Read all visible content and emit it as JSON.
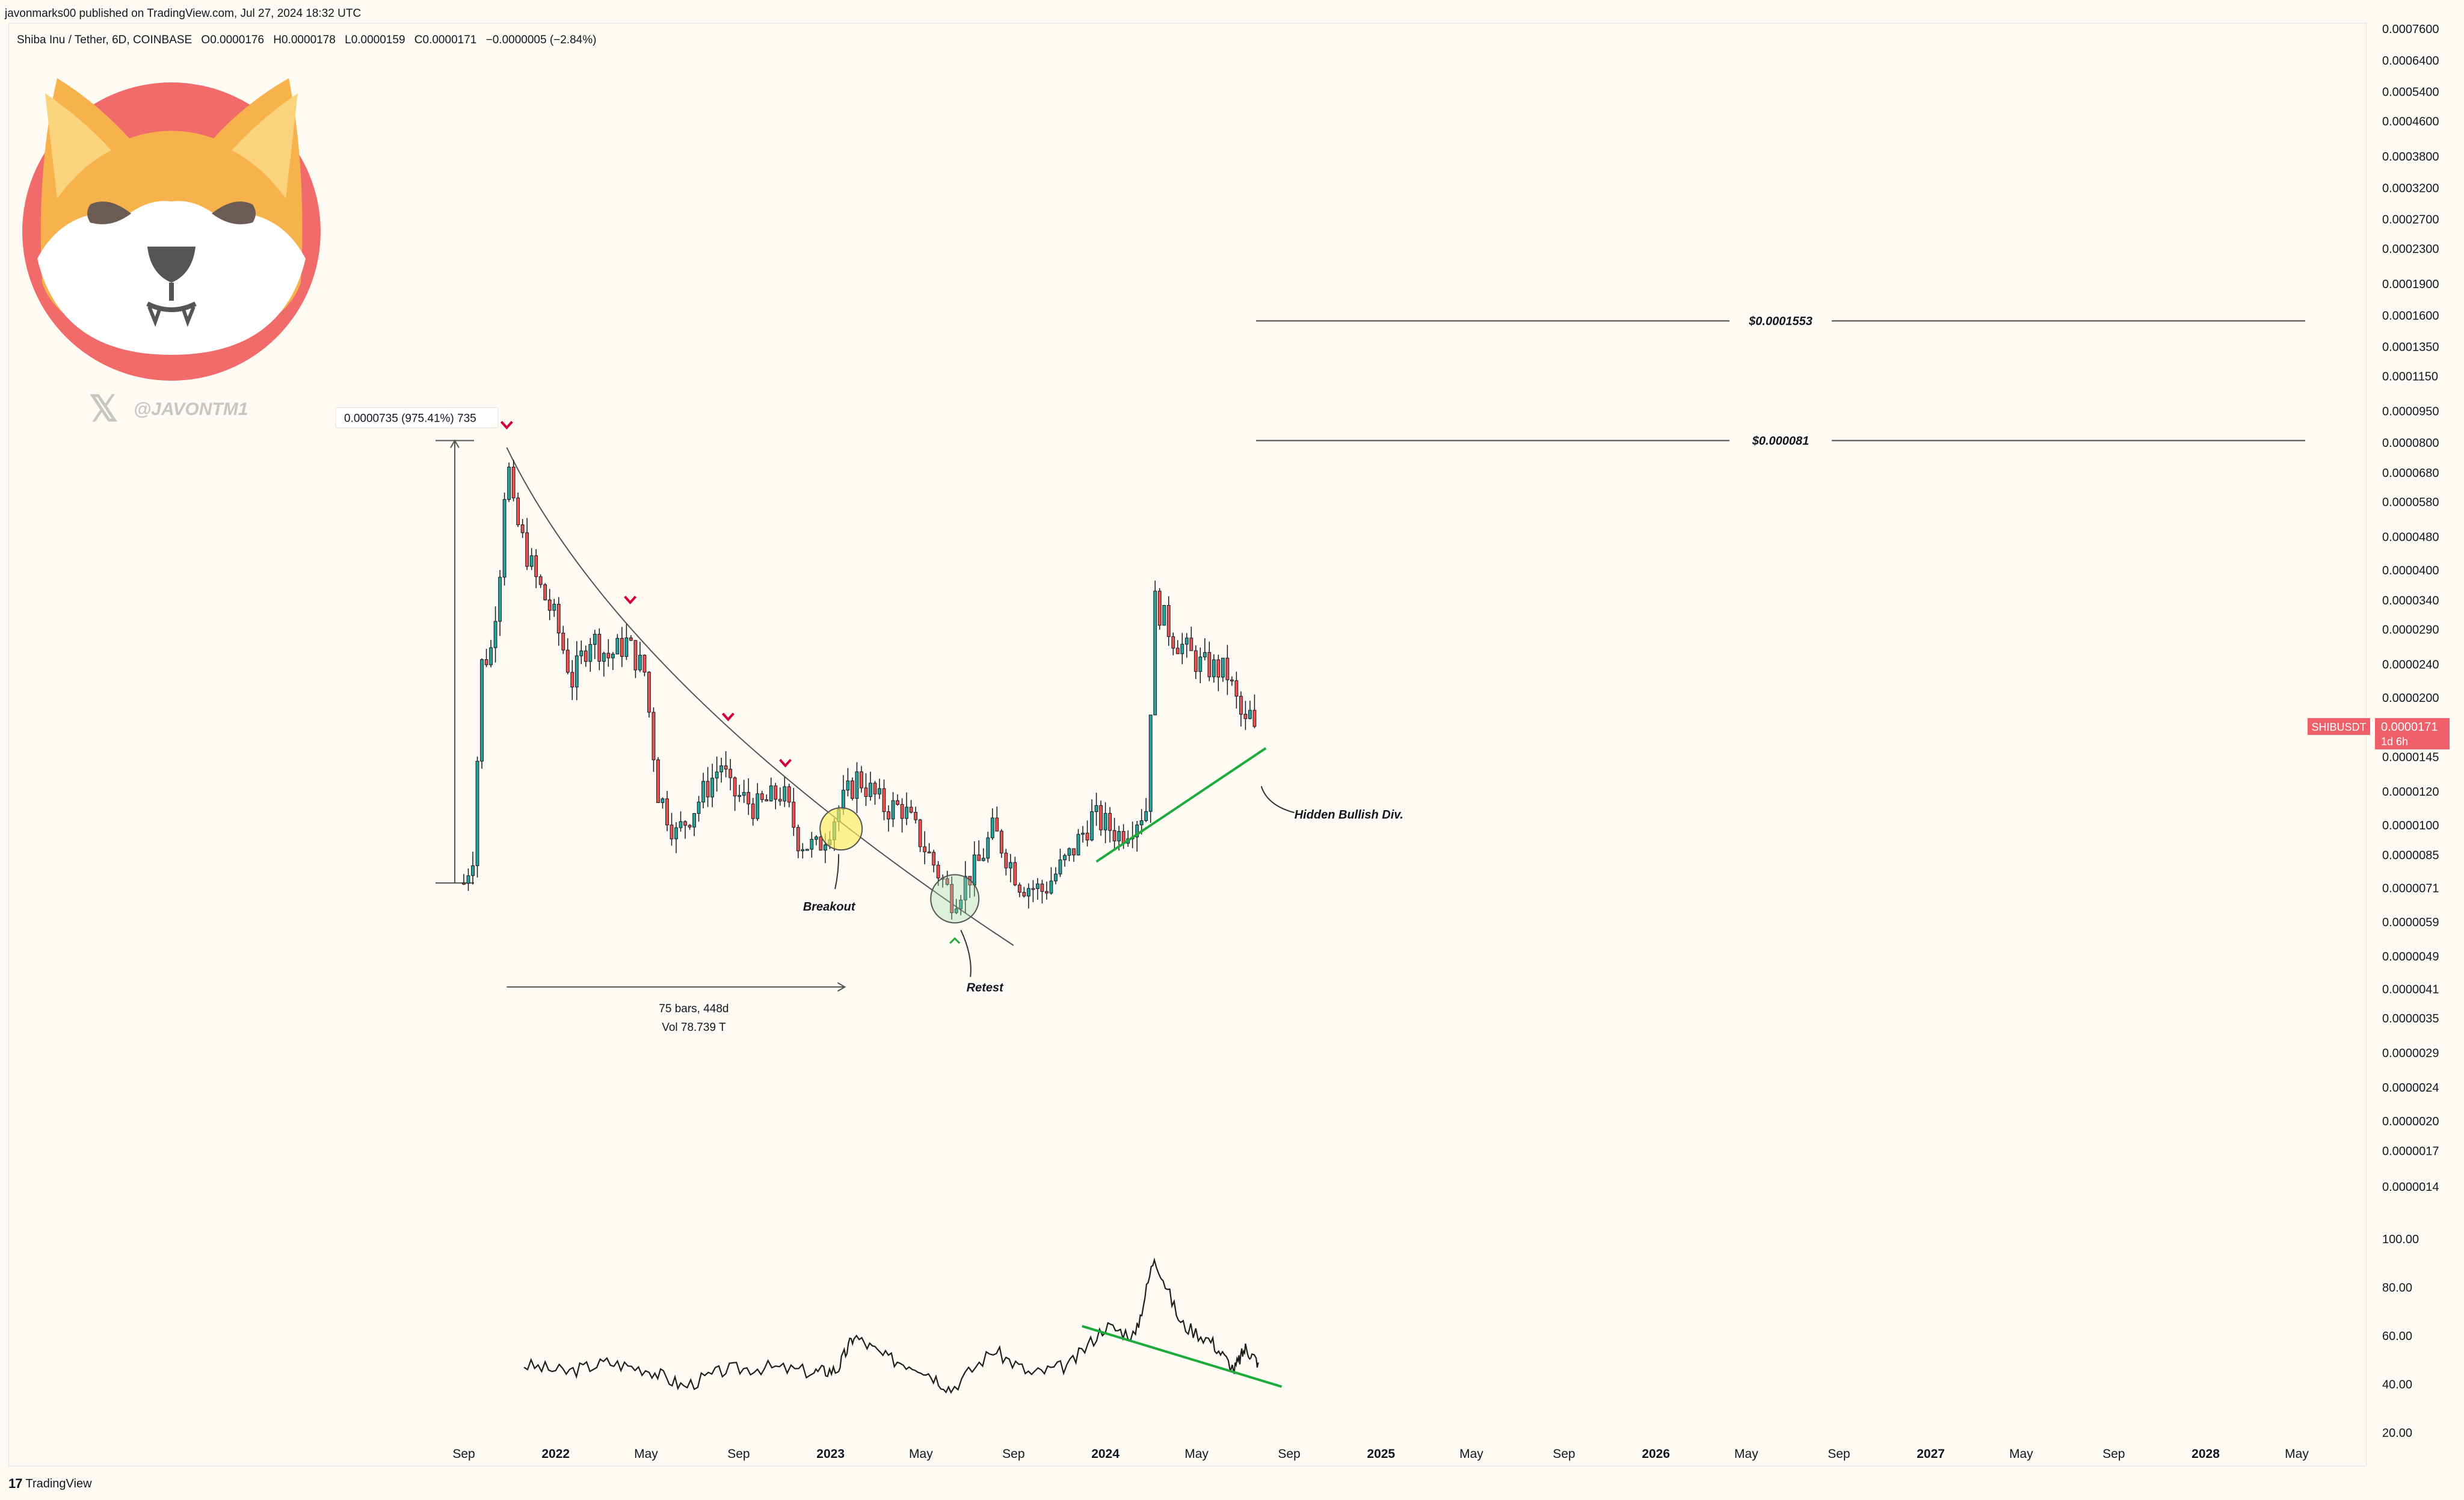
{
  "header": {
    "published_line": "javonmarks00 published on TradingView.com, Jul 27, 2024 18:32 UTC",
    "symbol": "Shiba Inu / Tether, 6D, COINBASE",
    "open": "O0.0000176",
    "high": "H0.0000178",
    "low": "L0.0000159",
    "close": "C0.0000171",
    "change": "−0.0000005 (−2.84%)"
  },
  "watermark": {
    "handle": "@JAVONTM1",
    "logo_icon": "shiba-inu-logo",
    "x_icon": "x-logo-icon"
  },
  "footer": {
    "brand": "TradingView",
    "logo_icon": "tradingview-logo-icon"
  },
  "colors": {
    "up": "#26a69a",
    "down": "#ef5350",
    "trend": "#1faa3c",
    "marker": "#d4003a",
    "price_tag": "#f0606a",
    "logo_ring": "#f26b6b",
    "logo_fur": "#f7b24c"
  },
  "chart_data": [
    {
      "type": "candlestick",
      "symbol": "SHIBUSDT",
      "interval": "6D",
      "scale": "log",
      "x_ticks": [
        "Sep",
        "2022",
        "May",
        "Sep",
        "2023",
        "May",
        "Sep",
        "2024",
        "May",
        "Sep",
        "2025",
        "May",
        "Sep",
        "2026",
        "May",
        "Sep",
        "2027",
        "May",
        "Sep",
        "2028",
        "May"
      ],
      "y_ticks": [
        "0.0007600",
        "0.0006400",
        "0.0005400",
        "0.0004600",
        "0.0003800",
        "0.0003200",
        "0.0002700",
        "0.0002300",
        "0.0001900",
        "0.0001600",
        "0.0001350",
        "0.0001150",
        "0.0000950",
        "0.0000800",
        "0.0000680",
        "0.0000580",
        "0.0000480",
        "0.0000400",
        "0.0000340",
        "0.0000290",
        "0.0000240",
        "0.0000200",
        "0.0000145",
        "0.0000120",
        "0.0000100",
        "0.0000085",
        "0.0000071",
        "0.0000059",
        "0.0000049",
        "0.0000041",
        "0.0000035",
        "0.0000029",
        "0.0000024",
        "0.0000020",
        "0.0000017",
        "0.0000014"
      ],
      "y_tick_values": [
        0.00076,
        0.00064,
        0.00054,
        0.00046,
        0.00038,
        0.00032,
        0.00027,
        0.00023,
        0.00019,
        0.00016,
        0.000135,
        0.000115,
        9.5e-05,
        8e-05,
        6.8e-05,
        5.8e-05,
        4.8e-05,
        4e-05,
        3.4e-05,
        2.9e-05,
        2.4e-05,
        2e-05,
        1.45e-05,
        1.2e-05,
        1e-05,
        8.5e-06,
        7.1e-06,
        5.9e-06,
        4.9e-06,
        4.1e-06,
        3.5e-06,
        2.9e-06,
        2.4e-06,
        2e-06,
        1.7e-06,
        1.4e-06
      ],
      "candle_close_path": [
        [
          "2021-09-01",
          7.3e-06
        ],
        [
          "2021-09-13",
          8.6e-06
        ],
        [
          "2021-09-25",
          2.4e-05
        ],
        [
          "2021-10-07",
          2.6e-05
        ],
        [
          "2021-10-19",
          4.1e-05
        ],
        [
          "2021-10-28",
          7.6e-05
        ],
        [
          "2021-11-06",
          5.5e-05
        ],
        [
          "2021-11-18",
          4.7e-05
        ],
        [
          "2021-12-06",
          3.8e-05
        ],
        [
          "2021-12-30",
          3.1e-05
        ],
        [
          "2022-01-23",
          2.2e-05
        ],
        [
          "2022-02-16",
          2.8e-05
        ],
        [
          "2022-03-12",
          2.5e-05
        ],
        [
          "2022-04-05",
          2.7e-05
        ],
        [
          "2022-04-29",
          2.3e-05
        ],
        [
          "2022-05-17",
          1.2e-05
        ],
        [
          "2022-06-10",
          9.5e-06
        ],
        [
          "2022-07-04",
          1.1e-05
        ],
        [
          "2022-08-09",
          1.4e-05
        ],
        [
          "2022-08-21",
          1.2e-05
        ],
        [
          "2022-09-26",
          1.1e-05
        ],
        [
          "2022-10-29",
          1.2e-05
        ],
        [
          "2022-11-20",
          9.2e-06
        ],
        [
          "2022-12-14",
          8.8e-06
        ],
        [
          "2023-01-13",
          1.1e-05
        ],
        [
          "2023-02-06",
          1.3e-05
        ],
        [
          "2023-03-14",
          1.1e-05
        ],
        [
          "2023-04-07",
          1.1e-05
        ],
        [
          "2023-05-07",
          8.8e-06
        ],
        [
          "2023-06-12",
          6.7e-06
        ],
        [
          "2023-07-18",
          8.2e-06
        ],
        [
          "2023-08-05",
          9.8e-06
        ],
        [
          "2023-09-10",
          7.3e-06
        ],
        [
          "2023-10-10",
          7e-06
        ],
        [
          "2023-11-15",
          8.5e-06
        ],
        [
          "2023-12-15",
          1.05e-05
        ],
        [
          "2024-01-20",
          9.5e-06
        ],
        [
          "2024-02-25",
          1.1e-05
        ],
        [
          "2024-03-06",
          3.4e-05
        ],
        [
          "2024-03-30",
          2.8e-05
        ],
        [
          "2024-05-05",
          2.4e-05
        ],
        [
          "2024-06-10",
          2.3e-05
        ],
        [
          "2024-07-04",
          1.7e-05
        ],
        [
          "2024-07-16",
          1.9e-05
        ],
        [
          "2024-07-22",
          1.71e-05
        ]
      ],
      "levels": [
        {
          "label": "$0.0001553",
          "value": 0.0001553
        },
        {
          "label": "$0.000081",
          "value": 8.1e-05
        }
      ],
      "last_price": {
        "symbol": "SHIBUSDT",
        "value": "0.0000171",
        "countdown": "1d 6h"
      },
      "annotations": [
        "Breakout",
        "Retest",
        "Hidden Bullish Div."
      ],
      "measure": {
        "box_label": "0.0000735 (975.41%) 735",
        "range_label": "75 bars, 448d",
        "volume_label": "Vol 78.739 T"
      }
    },
    {
      "type": "line",
      "name": "oscillator",
      "y_ticks": [
        "100.00",
        "80.00",
        "60.00",
        "40.00",
        "20.00"
      ],
      "ylim": [
        20,
        100
      ],
      "x": [
        "2021-11-20",
        "2022-01-15",
        "2022-03-10",
        "2022-05-05",
        "2022-06-20",
        "2022-08-15",
        "2022-10-10",
        "2022-12-10",
        "2023-01-10",
        "2023-02-01",
        "2023-03-15",
        "2023-05-01",
        "2023-06-10",
        "2023-08-05",
        "2023-09-25",
        "2023-11-15",
        "2024-01-01",
        "2024-02-10",
        "2024-03-06",
        "2024-04-10",
        "2024-05-20",
        "2024-06-20",
        "2024-07-05",
        "2024-07-22"
      ],
      "values": [
        48,
        45,
        49,
        46,
        39,
        46,
        47,
        45,
        46,
        60,
        51,
        47,
        38,
        54,
        44,
        48,
        64,
        60,
        93,
        65,
        58,
        46,
        55,
        49
      ]
    }
  ]
}
